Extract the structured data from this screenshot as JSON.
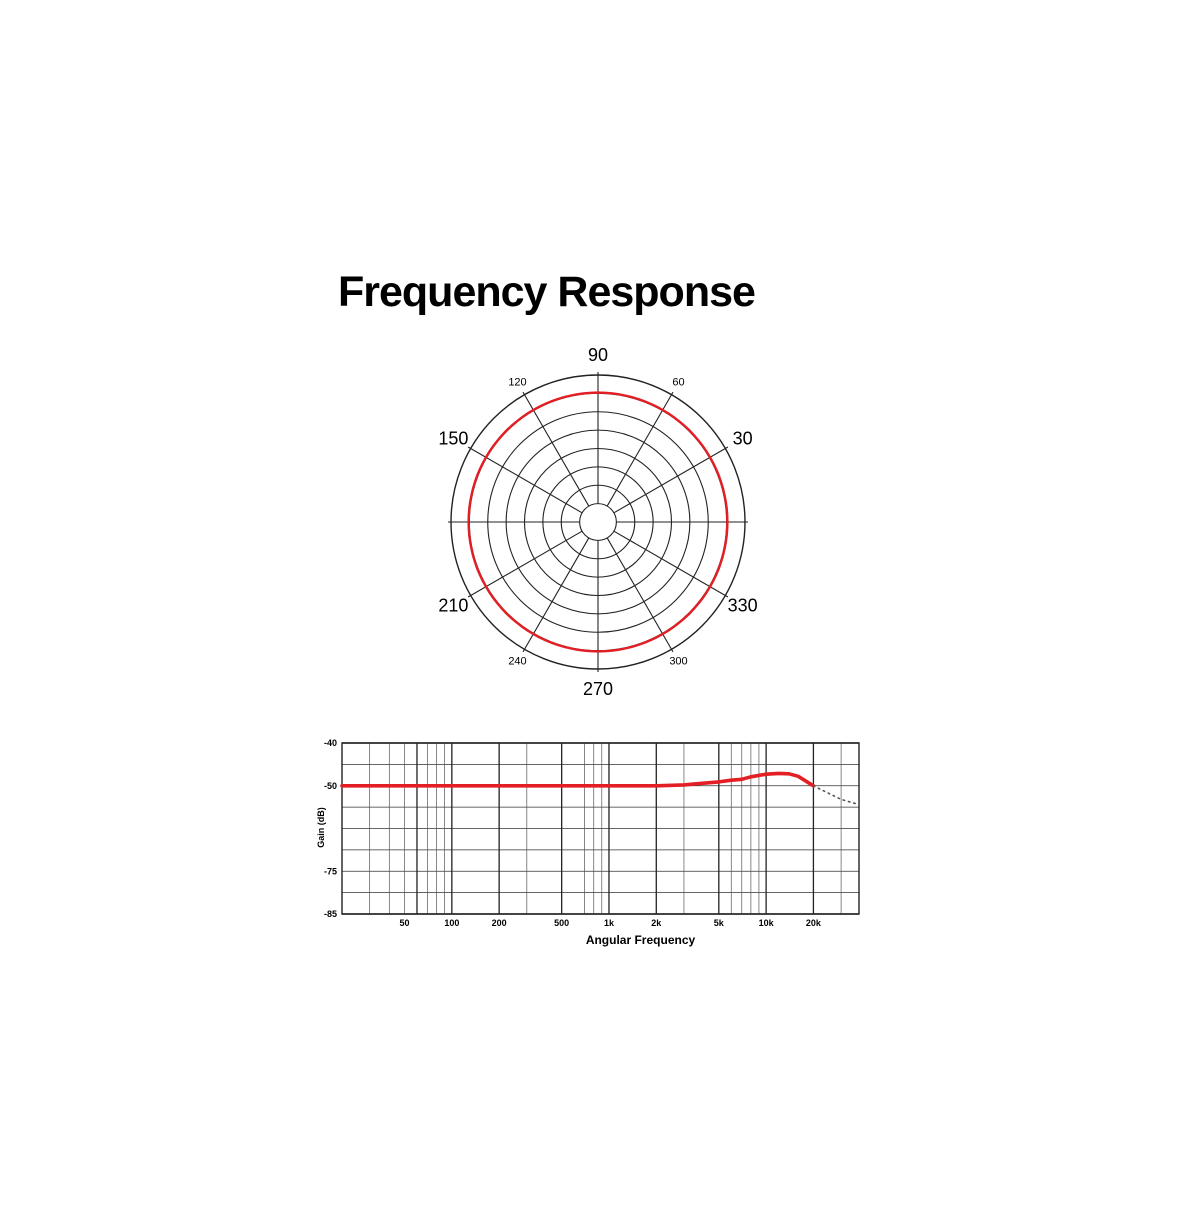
{
  "title": "Frequency Response",
  "chart_data": [
    {
      "type": "polar",
      "angle_labels": [
        {
          "angle": 90,
          "text": "90",
          "size": "large"
        },
        {
          "angle": 60,
          "text": "60",
          "size": "small"
        },
        {
          "angle": 30,
          "text": "30",
          "size": "large"
        },
        {
          "angle": 330,
          "text": "330",
          "size": "large"
        },
        {
          "angle": 300,
          "text": "300",
          "size": "small"
        },
        {
          "angle": 270,
          "text": "270",
          "size": "large"
        },
        {
          "angle": 240,
          "text": "240",
          "size": "small"
        },
        {
          "angle": 210,
          "text": "210",
          "size": "large"
        },
        {
          "angle": 150,
          "text": "150",
          "size": "large"
        },
        {
          "angle": 120,
          "text": "120",
          "size": "small"
        }
      ],
      "rings": 8,
      "spoke_step_deg": 30,
      "series": [
        {
          "color": "#e31e24",
          "pattern": "omnidirectional",
          "angles": [
            0,
            30,
            60,
            90,
            120,
            150,
            180,
            210,
            240,
            270,
            300,
            330
          ],
          "r": [
            0.88,
            0.88,
            0.88,
            0.88,
            0.88,
            0.88,
            0.88,
            0.88,
            0.88,
            0.88,
            0.88,
            0.88
          ]
        }
      ]
    },
    {
      "type": "line",
      "xlabel": "Angular Frequency",
      "ylabel": "Gain (dB)",
      "xscale": "log",
      "xlim": [
        20,
        39000
      ],
      "ylim": [
        -85,
        -40
      ],
      "grid": true,
      "x_ticks": [
        {
          "value": 50,
          "label": "50"
        },
        {
          "value": 100,
          "label": "100"
        },
        {
          "value": 200,
          "label": "200"
        },
        {
          "value": 500,
          "label": "500"
        },
        {
          "value": 1000,
          "label": "1k"
        },
        {
          "value": 2000,
          "label": "2k"
        },
        {
          "value": 5000,
          "label": "5k"
        },
        {
          "value": 10000,
          "label": "10k"
        },
        {
          "value": 20000,
          "label": "20k"
        }
      ],
      "y_ticks": [
        {
          "value": -40,
          "label": "-40"
        },
        {
          "value": -50,
          "label": "-50"
        },
        {
          "value": -75,
          "label": "-75"
        },
        {
          "value": -85,
          "label": "-85"
        }
      ],
      "series": [
        {
          "color": "#e31e24",
          "style": "solid",
          "x": [
            20,
            2000,
            3000,
            4000,
            5000,
            6000,
            7000,
            8000,
            10000,
            12000,
            14000,
            16000,
            20000
          ],
          "y": [
            -50,
            -50,
            -49.8,
            -49.4,
            -49.1,
            -48.7,
            -48.5,
            -47.9,
            -47.3,
            -47.1,
            -47.2,
            -47.8,
            -50
          ]
        },
        {
          "color": "#555555",
          "style": "dotted",
          "x": [
            20000,
            30000,
            39000
          ],
          "y": [
            -50,
            -54,
            -55.5
          ]
        }
      ]
    }
  ]
}
